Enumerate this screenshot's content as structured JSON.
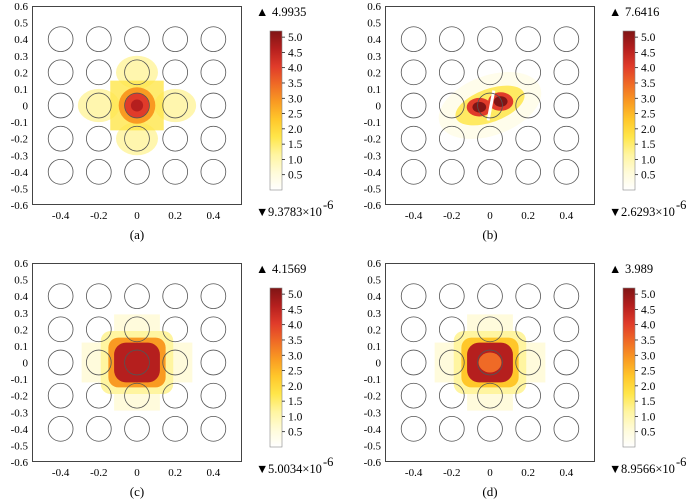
{
  "chart_data": [
    {
      "type": "heatmap",
      "panel_label": "(a)",
      "xlim": [
        -0.55,
        0.55
      ],
      "ylim": [
        -0.6,
        0.6
      ],
      "x_ticks": [
        "-0.4",
        "-0.2",
        "0",
        "0.2",
        "0.4"
      ],
      "y_ticks": [
        "0.6",
        "0.5",
        "0.4",
        "0.3",
        "0.2",
        "0.1",
        "0",
        "-0.1",
        "-0.2",
        "-0.3",
        "-0.4",
        "-0.5",
        "-0.6"
      ],
      "colorbar": {
        "min": 0,
        "max": 5.2,
        "ticks": [
          "5.0",
          "4.5",
          "4.0",
          "3.5",
          "3.0",
          "2.5",
          "2.0",
          "1.5",
          "1.0",
          "0.5"
        ]
      },
      "max_label": "4.9935",
      "min_label": "9.3783×10",
      "min_exp": "-6",
      "field_pattern": "monopole",
      "peak_value": 4.9935
    },
    {
      "type": "heatmap",
      "panel_label": "(b)",
      "xlim": [
        -0.55,
        0.55
      ],
      "ylim": [
        -0.6,
        0.6
      ],
      "x_ticks": [
        "-0.4",
        "-0.2",
        "0",
        "0.2",
        "0.4"
      ],
      "y_ticks": [
        "0.6",
        "0.5",
        "0.4",
        "0.3",
        "0.2",
        "0.1",
        "0",
        "-0.1",
        "-0.2",
        "-0.3",
        "-0.4",
        "-0.5",
        "-0.6"
      ],
      "colorbar": {
        "min": 0,
        "max": 5.2,
        "ticks": [
          "5.0",
          "4.5",
          "4.0",
          "3.5",
          "3.0",
          "2.5",
          "2.0",
          "1.5",
          "1.0",
          "0.5"
        ]
      },
      "max_label": "7.6416",
      "min_label": "2.6293×10",
      "min_exp": "-6",
      "field_pattern": "dipole",
      "peak_value": 7.6416
    },
    {
      "type": "heatmap",
      "panel_label": "(c)",
      "xlim": [
        -0.55,
        0.55
      ],
      "ylim": [
        -0.6,
        0.6
      ],
      "x_ticks": [
        "-0.4",
        "-0.2",
        "0",
        "0.2",
        "0.4"
      ],
      "y_ticks": [
        "0.6",
        "0.5",
        "0.4",
        "0.3",
        "0.2",
        "0.1",
        "0",
        "-0.1",
        "-0.2",
        "-0.3",
        "-0.4",
        "-0.5",
        "-0.6"
      ],
      "colorbar": {
        "min": 0,
        "max": 5.2,
        "ticks": [
          "5.0",
          "4.5",
          "4.0",
          "3.5",
          "3.0",
          "2.5",
          "2.0",
          "1.5",
          "1.0",
          "0.5"
        ]
      },
      "max_label": "4.1569",
      "min_label": "5.0034×10",
      "min_exp": "-6",
      "field_pattern": "square",
      "peak_value": 4.1569
    },
    {
      "type": "heatmap",
      "panel_label": "(d)",
      "xlim": [
        -0.55,
        0.55
      ],
      "ylim": [
        -0.6,
        0.6
      ],
      "x_ticks": [
        "-0.4",
        "-0.2",
        "0",
        "0.2",
        "0.4"
      ],
      "y_ticks": [
        "0.6",
        "0.5",
        "0.4",
        "0.3",
        "0.2",
        "0.1",
        "0",
        "-0.1",
        "-0.2",
        "-0.3",
        "-0.4",
        "-0.5",
        "-0.6"
      ],
      "colorbar": {
        "min": 0,
        "max": 5.2,
        "ticks": [
          "5.0",
          "4.5",
          "4.0",
          "3.5",
          "3.0",
          "2.5",
          "2.0",
          "1.5",
          "1.0",
          "0.5"
        ]
      },
      "max_label": "3.989",
      "min_label": "8.9566×10",
      "min_exp": "-6",
      "field_pattern": "square-ring",
      "peak_value": 3.989
    }
  ],
  "rod_lattice": {
    "x": [
      -0.4,
      -0.2,
      0,
      0.2,
      0.4
    ],
    "y": [
      0.4,
      0.2,
      0,
      -0.2,
      -0.4
    ],
    "radius_x": 0.065,
    "radius_y": 0.075
  },
  "colors": {
    "colormap": [
      "#ffffff",
      "#fffbd8",
      "#fff5a0",
      "#ffe64a",
      "#ffc72a",
      "#f99a22",
      "#ef6a26",
      "#e03b2a",
      "#b51f1e",
      "#801515"
    ],
    "rod_outline": "#555555",
    "frame": "#444444"
  }
}
